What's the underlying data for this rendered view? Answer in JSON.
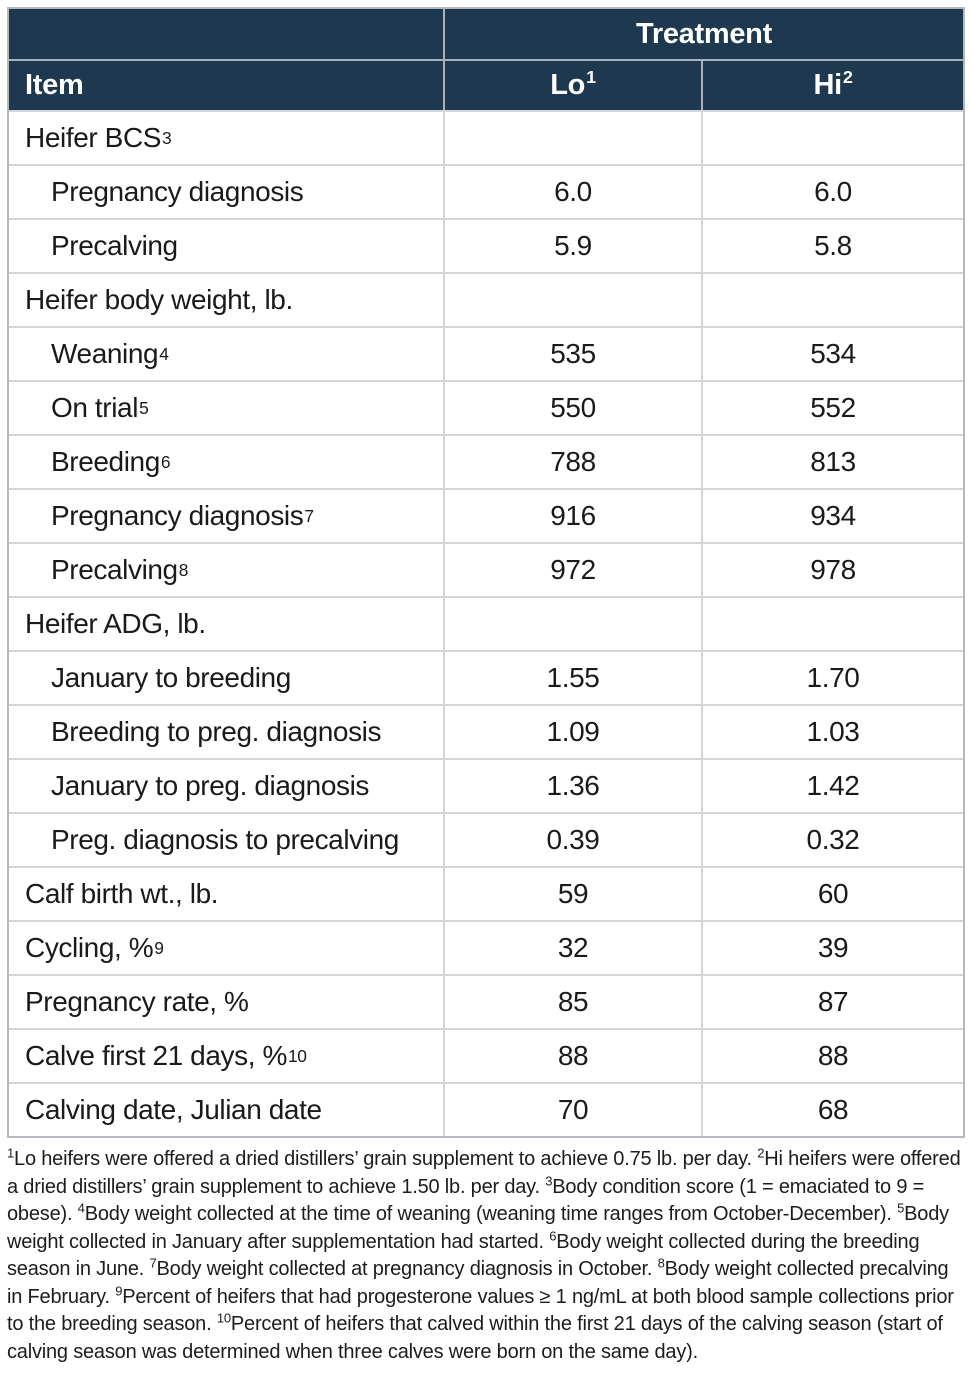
{
  "table": {
    "header": {
      "treatment_label": "Treatment",
      "item_label": "Item",
      "col_lo": {
        "text": "Lo",
        "sup": "1"
      },
      "col_hi": {
        "text": "Hi",
        "sup": "2"
      }
    },
    "rows": [
      {
        "label": "Heifer BCS",
        "sup": "3",
        "indent": false,
        "lo": "",
        "hi": ""
      },
      {
        "label": "Pregnancy diagnosis",
        "sup": "",
        "indent": true,
        "lo": "6.0",
        "hi": "6.0"
      },
      {
        "label": "Precalving",
        "sup": "",
        "indent": true,
        "lo": "5.9",
        "hi": "5.8"
      },
      {
        "label": "Heifer body weight, lb.",
        "sup": "",
        "indent": false,
        "lo": "",
        "hi": ""
      },
      {
        "label": "Weaning",
        "sup": "4",
        "indent": true,
        "lo": "535",
        "hi": "534"
      },
      {
        "label": "On trial",
        "sup": "5",
        "indent": true,
        "lo": "550",
        "hi": "552"
      },
      {
        "label": "Breeding",
        "sup": "6",
        "indent": true,
        "lo": "788",
        "hi": "813"
      },
      {
        "label": "Pregnancy diagnosis",
        "sup": "7",
        "indent": true,
        "lo": "916",
        "hi": "934"
      },
      {
        "label": "Precalving",
        "sup": "8",
        "indent": true,
        "lo": "972",
        "hi": "978"
      },
      {
        "label": "Heifer ADG, lb.",
        "sup": "",
        "indent": false,
        "lo": "",
        "hi": ""
      },
      {
        "label": "January to breeding",
        "sup": "",
        "indent": true,
        "lo": "1.55",
        "hi": "1.70"
      },
      {
        "label": "Breeding to preg. diagnosis",
        "sup": "",
        "indent": true,
        "lo": "1.09",
        "hi": "1.03"
      },
      {
        "label": "January to preg. diagnosis",
        "sup": "",
        "indent": true,
        "lo": "1.36",
        "hi": "1.42"
      },
      {
        "label": "Preg. diagnosis to precalving",
        "sup": "",
        "indent": true,
        "lo": "0.39",
        "hi": "0.32"
      },
      {
        "label": "Calf birth wt., lb.",
        "sup": "",
        "indent": false,
        "lo": "59",
        "hi": "60"
      },
      {
        "label": "Cycling, %",
        "sup": "9",
        "indent": false,
        "lo": "32",
        "hi": "39"
      },
      {
        "label": "Pregnancy rate, %",
        "sup": "",
        "indent": false,
        "lo": "85",
        "hi": "87"
      },
      {
        "label": "Calve first 21 days, %",
        "sup": "10",
        "indent": false,
        "lo": "88",
        "hi": "88"
      },
      {
        "label": "Calving date, Julian date",
        "sup": "",
        "indent": false,
        "lo": "70",
        "hi": "68"
      }
    ]
  },
  "footnotes": [
    {
      "sup": "1",
      "text": "Lo heifers were offered a dried distillers’ grain supplement to achieve 0.75 lb. per day."
    },
    {
      "sup": "2",
      "text": "Hi heifers were offered a dried distillers’ grain supplement to achieve 1.50 lb. per day."
    },
    {
      "sup": "3",
      "text": "Body condition score (1 = emaciated to 9 = obese)."
    },
    {
      "sup": "4",
      "text": "Body weight collected at the time of weaning (weaning time ranges from October-December)."
    },
    {
      "sup": "5",
      "text": "Body weight collected in January after supplementation had started."
    },
    {
      "sup": "6",
      "text": "Body weight collected during the breeding season in June."
    },
    {
      "sup": "7",
      "text": "Body weight collected at pregnancy diagnosis in October."
    },
    {
      "sup": "8",
      "text": "Body weight collected precalving in February."
    },
    {
      "sup": "9",
      "text": "Percent of heifers that had progesterone values ≥ 1 ng/mL at both blood sample collections prior to the breeding season."
    },
    {
      "sup": "10",
      "text": "Percent of heifers that calved within the first 21 days of the calving season (start of calving season was determined when three calves were born on the same day)."
    }
  ],
  "colors": {
    "header_bg": "#1d384f",
    "header_text": "#ffffff",
    "grid_line": "#d3d6d9",
    "outer_border": "#b3b9bf",
    "body_text": "#1a1a1a"
  }
}
